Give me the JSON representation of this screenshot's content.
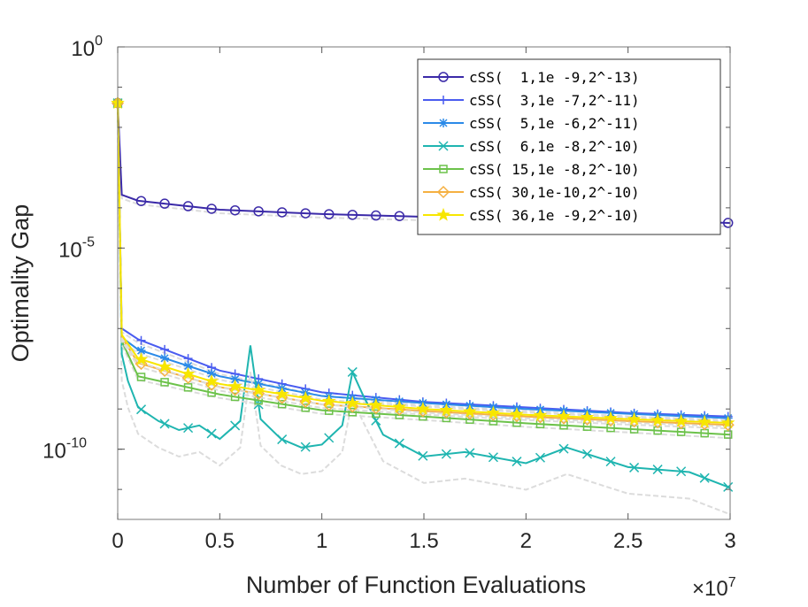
{
  "chart_data": {
    "type": "line",
    "title": "",
    "xlabel": "Number of Function Evaluations",
    "x_exponent_label": "×10",
    "x_exponent": "7",
    "ylabel": "Optimality Gap",
    "xlim": [
      0,
      30000000
    ],
    "ylim": [
      1.8e-12,
      1
    ],
    "yscale": "log",
    "xticks": [
      0,
      5000000,
      10000000,
      15000000,
      20000000,
      25000000,
      30000000
    ],
    "xtick_labels": [
      "0",
      "0.5",
      "1",
      "1.5",
      "2",
      "2.5",
      "3"
    ],
    "yticks": [
      1,
      1e-05,
      1e-10
    ],
    "ytick_base": "10",
    "ytick_exponents": [
      "0",
      "-5",
      "-10"
    ],
    "grid": false,
    "legend_position": "top-right",
    "x": [
      0,
      200000,
      1000000,
      5000000,
      10000000,
      15000000,
      20000000,
      25000000,
      30000000
    ],
    "series": [
      {
        "name": "cSS(  1,1e -9,2^-13)",
        "color": "#3b2aa8",
        "marker": "circle",
        "values": [
          0.04,
          0.00021,
          0.00015,
          9e-05,
          7e-05,
          6e-05,
          5.5e-05,
          5e-05,
          4.2e-05
        ]
      },
      {
        "name": "cSS(  3,1e -7,2^-11)",
        "color": "#4a5cf0",
        "marker": "plus",
        "values": [
          0.04,
          1e-07,
          5.4e-08,
          9e-09,
          2.6e-09,
          1.5e-09,
          1.1e-09,
          8e-10,
          6.5e-10
        ]
      },
      {
        "name": "cSS(  5,1e -6,2^-11)",
        "color": "#2b8ae8",
        "marker": "asterisk",
        "values": [
          0.04,
          6e-08,
          3e-08,
          6.5e-09,
          2.1e-09,
          1.4e-09,
          1e-09,
          7.6e-10,
          5.9e-10
        ]
      },
      {
        "name": "cSS(  6,1e -8,2^-10)",
        "color": "#1fb5b0",
        "marker": "x",
        "x": [
          0,
          200000,
          500000,
          1000000,
          2000000,
          3000000,
          4000000,
          5000000,
          6000000,
          6500000,
          7000000,
          8000000,
          9000000,
          10000000,
          11000000,
          11500000,
          12000000,
          13000000,
          15000000,
          17000000,
          20000000,
          22000000,
          25000000,
          28000000,
          30000000
        ],
        "values": [
          0.04,
          2.3e-08,
          5e-09,
          1.1e-09,
          5e-10,
          3e-10,
          3.9e-10,
          1.8e-10,
          5e-10,
          3.8e-08,
          5.6e-10,
          1.8e-10,
          1.1e-10,
          1.3e-10,
          3.9e-10,
          8.3e-09,
          2.3e-09,
          2.3e-10,
          6.6e-11,
          8.5e-11,
          4.5e-11,
          1.1e-10,
          3.6e-11,
          2.7e-11,
          1.1e-11
        ]
      },
      {
        "name": "cSS( 15,1e -8,2^-10)",
        "color": "#6cc24a",
        "marker": "square",
        "values": [
          0.04,
          4.9e-08,
          6.5e-09,
          2.3e-09,
          9.3e-10,
          6.5e-10,
          4.4e-10,
          3.2e-10,
          2.3e-10
        ]
      },
      {
        "name": "cSS( 30,1e-10,2^-10)",
        "color": "#f5b041",
        "marker": "diamond",
        "values": [
          0.04,
          6e-08,
          1.4e-08,
          3.5e-09,
          1.3e-09,
          8.9e-10,
          6.5e-10,
          5e-10,
          4e-10
        ]
      },
      {
        "name": "cSS( 36,1e -9,2^-10)",
        "color": "#f7e600",
        "marker": "star",
        "values": [
          0.04,
          7e-08,
          1.8e-08,
          4.2e-09,
          1.6e-09,
          1e-09,
          7.2e-10,
          5.6e-10,
          4.5e-10
        ]
      }
    ]
  }
}
